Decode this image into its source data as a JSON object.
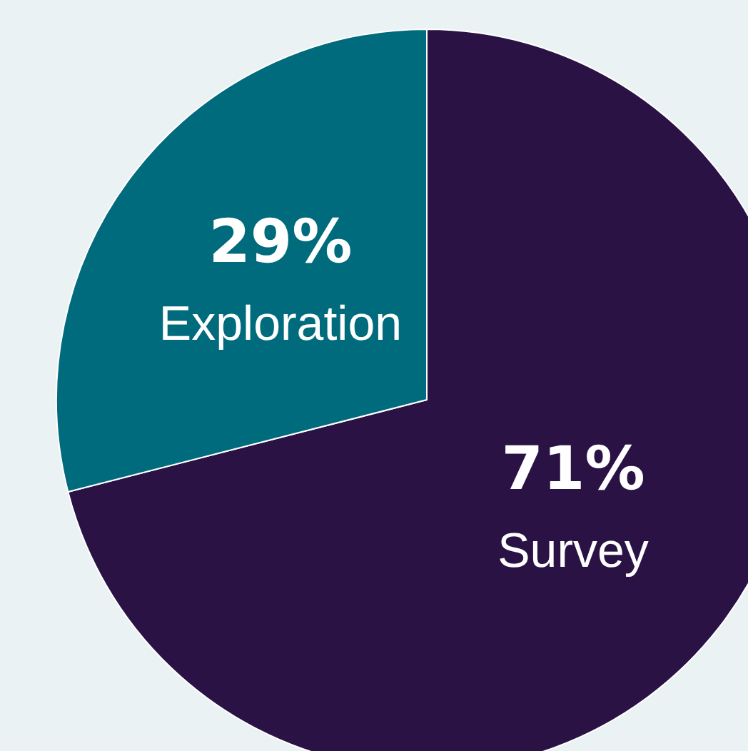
{
  "chart_data": {
    "type": "pie",
    "categories": [
      "Survey",
      "Exploration"
    ],
    "values": [
      71,
      29
    ],
    "colors": [
      "#2a1245",
      "#006b7d"
    ],
    "value_labels": [
      "71%",
      "29%"
    ],
    "legend": false
  }
}
